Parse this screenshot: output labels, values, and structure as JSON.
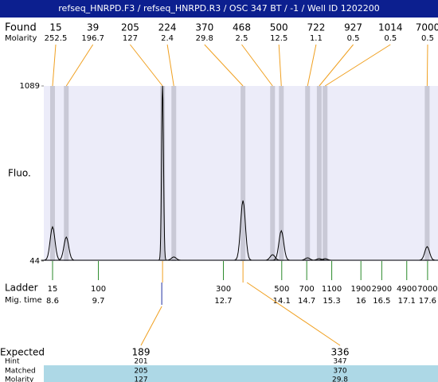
{
  "title": "refseq_HNRPD.F3 / refseq_HNRPD.R3 / OSC 347 BT / -1 / Well ID 1202200",
  "found": {
    "label": "Found",
    "molarity_label": "Molarity",
    "peaks": [
      {
        "size": 15,
        "molarity": 252.5,
        "time": 8.6,
        "height": 248
      },
      {
        "size": 39,
        "molarity": 196.7,
        "time": 8.93,
        "height": 187
      },
      {
        "size": 205,
        "molarity": 127,
        "time": 11.24,
        "height": 1089
      },
      {
        "size": 224,
        "molarity": 2.4,
        "time": 11.51,
        "height": 68
      },
      {
        "size": 370,
        "molarity": 29.8,
        "time": 13.17,
        "height": 405
      },
      {
        "size": 468,
        "molarity": 2.5,
        "time": 13.88,
        "height": 82
      },
      {
        "size": 500,
        "molarity": 12.5,
        "time": 14.09,
        "height": 225
      },
      {
        "size": 722,
        "molarity": 1.1,
        "time": 14.72,
        "height": 63
      },
      {
        "size": 927,
        "molarity": 0.5,
        "time": 15.0,
        "height": 58
      },
      {
        "size": 1014,
        "molarity": 0.5,
        "time": 15.14,
        "height": 58
      },
      {
        "size": 7000,
        "molarity": 0.5,
        "time": 17.59,
        "height": 130
      }
    ]
  },
  "chart_data": {
    "type": "electropherogram",
    "ylabel": "Fluo.",
    "ylim": [
      44,
      1089
    ],
    "yticks": [
      44,
      1089
    ],
    "xlim": [
      8.39,
      17.85
    ]
  },
  "ladder": {
    "label": "Ladder",
    "time_label": "Mig. time",
    "sizes": [
      15,
      100,
      300,
      500,
      700,
      1100,
      1900,
      2900,
      4900,
      7000
    ],
    "times": [
      8.6,
      9.7,
      12.7,
      14.1,
      14.7,
      15.3,
      16,
      16.5,
      17.1,
      17.6
    ]
  },
  "expected": {
    "labels": [
      "Expected",
      "Hint",
      "Matched",
      "Molarity"
    ],
    "columns": [
      {
        "expected": 189,
        "hint": 201,
        "matched": 205,
        "molarity": 127,
        "peak": 2
      },
      {
        "expected": 336,
        "hint": 347,
        "matched": 370,
        "molarity": 29.8,
        "peak": 4
      }
    ]
  }
}
